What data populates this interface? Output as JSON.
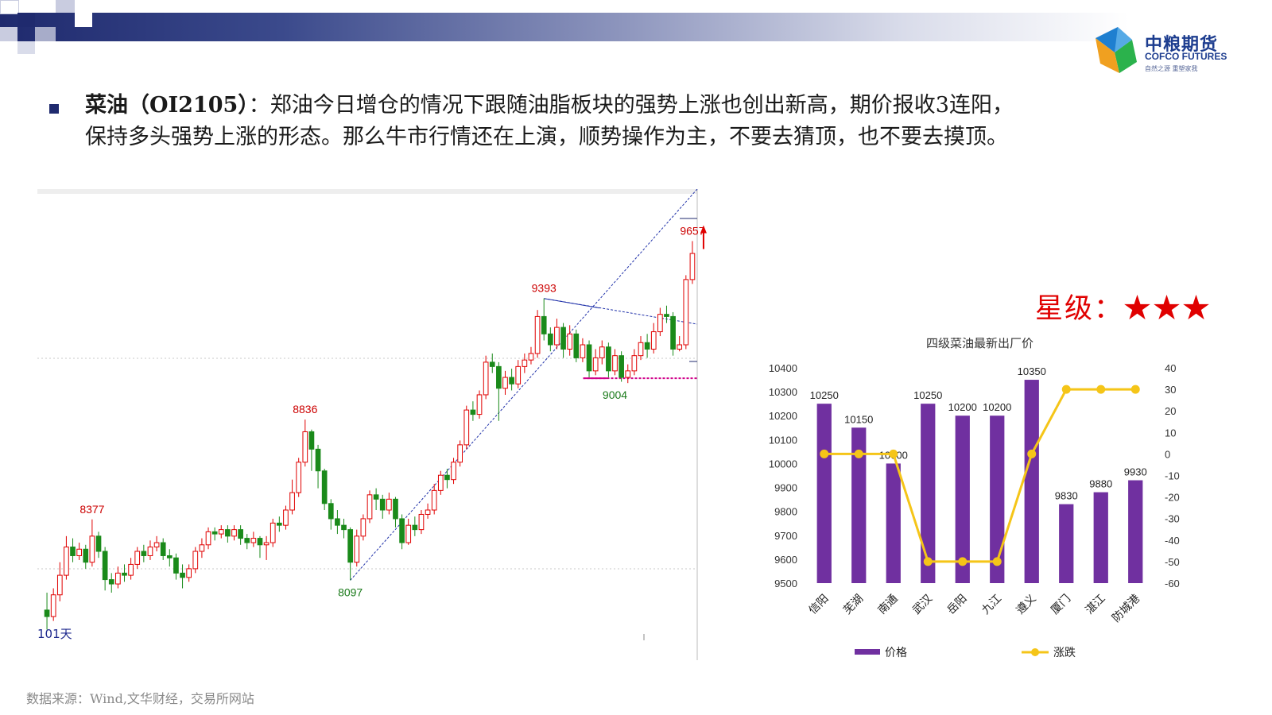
{
  "headline": {
    "bullet_title": "菜油（OI2105）",
    "line1_rest": "：郑油今日增仓的情况下跟随油脂板块的强势上涨也创出新高，期价报收3连阳，",
    "line2": "保持多头强势上涨的形态。那么牛市行情还在上演，顺势操作为主，不要去猜顶，也不要去摸顶。"
  },
  "logo": {
    "name_cn": "中粮期货",
    "name_en": "COFCO FUTURES",
    "tagline": "自然之源 重塑家我"
  },
  "rating": {
    "label": "星级：",
    "stars": "★★★"
  },
  "source": "数据来源：Wind,文华财经，交易所网站",
  "colors": {
    "header": "#1f2a6e",
    "up": "#e00000",
    "down": "#1a8a1a",
    "bar": "#7030a0",
    "line": "#f5c518",
    "stars": "#e00000"
  },
  "chart_data": [
    {
      "type": "candlestick",
      "title": "",
      "period_label": "101天",
      "annotations": [
        {
          "label": "8377",
          "value": 8377,
          "kind": "high"
        },
        {
          "label": "8836",
          "value": 8836,
          "kind": "high"
        },
        {
          "label": "8097",
          "value": 8097,
          "kind": "low"
        },
        {
          "label": "9393",
          "value": 9393,
          "kind": "high"
        },
        {
          "label": "9004",
          "value": 9004,
          "kind": "low"
        },
        {
          "label": "9657",
          "value": 9657,
          "kind": "high"
        }
      ],
      "ylim": [
        7850,
        9750
      ],
      "candles": [
        [
          7960,
          7930,
          8040,
          7870
        ],
        [
          7930,
          8030,
          8060,
          7910
        ],
        [
          8030,
          8120,
          8180,
          8000
        ],
        [
          8120,
          8250,
          8300,
          8100
        ],
        [
          8250,
          8210,
          8290,
          8180
        ],
        [
          8210,
          8240,
          8270,
          8190
        ],
        [
          8240,
          8180,
          8260,
          8150
        ],
        [
          8180,
          8300,
          8377,
          8160
        ],
        [
          8300,
          8230,
          8320,
          8200
        ],
        [
          8230,
          8100,
          8250,
          8050
        ],
        [
          8100,
          8080,
          8130,
          8040
        ],
        [
          8080,
          8130,
          8160,
          8060
        ],
        [
          8130,
          8120,
          8170,
          8090
        ],
        [
          8120,
          8170,
          8200,
          8100
        ],
        [
          8170,
          8230,
          8250,
          8150
        ],
        [
          8230,
          8210,
          8260,
          8180
        ],
        [
          8210,
          8250,
          8280,
          8190
        ],
        [
          8250,
          8270,
          8300,
          8230
        ],
        [
          8270,
          8210,
          8290,
          8190
        ],
        [
          8210,
          8200,
          8240,
          8160
        ],
        [
          8200,
          8130,
          8220,
          8100
        ],
        [
          8130,
          8110,
          8170,
          8060
        ],
        [
          8110,
          8150,
          8170,
          8090
        ],
        [
          8150,
          8230,
          8250,
          8130
        ],
        [
          8230,
          8260,
          8290,
          8200
        ],
        [
          8260,
          8320,
          8340,
          8240
        ],
        [
          8320,
          8310,
          8340,
          8280
        ],
        [
          8310,
          8330,
          8350,
          8290
        ],
        [
          8330,
          8300,
          8350,
          8270
        ],
        [
          8300,
          8330,
          8350,
          8280
        ],
        [
          8330,
          8290,
          8350,
          8260
        ],
        [
          8290,
          8270,
          8310,
          8240
        ],
        [
          8270,
          8290,
          8320,
          8250
        ],
        [
          8290,
          8260,
          8300,
          8200
        ],
        [
          8260,
          8270,
          8300,
          8190
        ],
        [
          8270,
          8360,
          8380,
          8250
        ],
        [
          8360,
          8350,
          8390,
          8320
        ],
        [
          8350,
          8420,
          8440,
          8330
        ],
        [
          8420,
          8500,
          8560,
          8400
        ],
        [
          8500,
          8640,
          8660,
          8480
        ],
        [
          8640,
          8780,
          8836,
          8620
        ],
        [
          8780,
          8700,
          8790,
          8600
        ],
        [
          8700,
          8600,
          8720,
          8520
        ],
        [
          8600,
          8450,
          8610,
          8420
        ],
        [
          8450,
          8380,
          8470,
          8330
        ],
        [
          8380,
          8350,
          8420,
          8310
        ],
        [
          8350,
          8330,
          8380,
          8290
        ],
        [
          8330,
          8180,
          8340,
          8097
        ],
        [
          8180,
          8300,
          8330,
          8160
        ],
        [
          8300,
          8380,
          8400,
          8280
        ],
        [
          8380,
          8490,
          8510,
          8360
        ],
        [
          8490,
          8470,
          8520,
          8420
        ],
        [
          8470,
          8420,
          8490,
          8380
        ],
        [
          8420,
          8470,
          8500,
          8400
        ],
        [
          8470,
          8380,
          8480,
          8340
        ],
        [
          8380,
          8270,
          8400,
          8240
        ],
        [
          8270,
          8350,
          8380,
          8260
        ],
        [
          8350,
          8330,
          8390,
          8300
        ],
        [
          8330,
          8400,
          8420,
          8310
        ],
        [
          8400,
          8420,
          8450,
          8380
        ],
        [
          8420,
          8510,
          8540,
          8400
        ],
        [
          8510,
          8580,
          8600,
          8490
        ],
        [
          8580,
          8560,
          8610,
          8520
        ],
        [
          8560,
          8640,
          8660,
          8540
        ],
        [
          8640,
          8720,
          8740,
          8620
        ],
        [
          8720,
          8880,
          8900,
          8700
        ],
        [
          8880,
          8860,
          8920,
          8830
        ],
        [
          8860,
          8950,
          8970,
          8840
        ],
        [
          8950,
          9100,
          9130,
          8930
        ],
        [
          9100,
          9080,
          9140,
          9050
        ],
        [
          9080,
          8980,
          9100,
          8830
        ],
        [
          8980,
          9030,
          9060,
          8950
        ],
        [
          9030,
          9000,
          9070,
          8970
        ],
        [
          9000,
          9080,
          9110,
          8980
        ],
        [
          9080,
          9110,
          9140,
          9050
        ],
        [
          9110,
          9140,
          9170,
          9090
        ],
        [
          9140,
          9310,
          9340,
          9120
        ],
        [
          9310,
          9230,
          9393,
          9200
        ],
        [
          9230,
          9180,
          9260,
          9150
        ],
        [
          9180,
          9260,
          9300,
          9160
        ],
        [
          9260,
          9160,
          9280,
          9120
        ],
        [
          9160,
          9230,
          9270,
          9130
        ],
        [
          9230,
          9120,
          9250,
          9100
        ],
        [
          9120,
          9180,
          9210,
          9100
        ],
        [
          9180,
          9060,
          9200,
          9030
        ],
        [
          9060,
          9120,
          9160,
          9040
        ],
        [
          9120,
          9170,
          9200,
          9090
        ],
        [
          9170,
          9060,
          9190,
          9030
        ],
        [
          9060,
          9130,
          9160,
          9040
        ],
        [
          9130,
          9030,
          9150,
          9010
        ],
        [
          9030,
          9060,
          9090,
          9004
        ],
        [
          9060,
          9130,
          9160,
          9040
        ],
        [
          9130,
          9190,
          9220,
          9110
        ],
        [
          9190,
          9160,
          9230,
          9120
        ],
        [
          9160,
          9240,
          9280,
          9140
        ],
        [
          9240,
          9320,
          9350,
          9220
        ],
        [
          9320,
          9310,
          9360,
          9280
        ],
        [
          9310,
          9160,
          9330,
          9130
        ],
        [
          9160,
          9180,
          9220,
          9150
        ],
        [
          9180,
          9480,
          9500,
          9160
        ],
        [
          9480,
          9600,
          9657,
          9460
        ]
      ]
    },
    {
      "type": "bar",
      "title": "四级菜油最新出厂价",
      "categories": [
        "信阳",
        "芜湖",
        "南通",
        "武汉",
        "岳阳",
        "九江",
        "遵义",
        "厦门",
        "湛江",
        "防城港"
      ],
      "series": [
        {
          "name": "价格",
          "type": "bar",
          "axis": "left",
          "values": [
            10250,
            10150,
            10000,
            10250,
            10200,
            10200,
            10350,
            9830,
            9880,
            9930
          ]
        },
        {
          "name": "涨跌",
          "type": "line",
          "axis": "right",
          "values": [
            0,
            0,
            0,
            -50,
            -50,
            -50,
            0,
            30,
            30,
            30
          ]
        }
      ],
      "ylim_left": [
        9500,
        10400
      ],
      "yticks_left": [
        9500,
        9600,
        9700,
        9800,
        9900,
        10000,
        10100,
        10200,
        10300,
        10400
      ],
      "ylim_right": [
        -60,
        40
      ],
      "yticks_right": [
        -60,
        -50,
        -40,
        -30,
        -20,
        -10,
        0,
        10,
        20,
        30,
        40
      ],
      "legend": "bottom"
    }
  ]
}
